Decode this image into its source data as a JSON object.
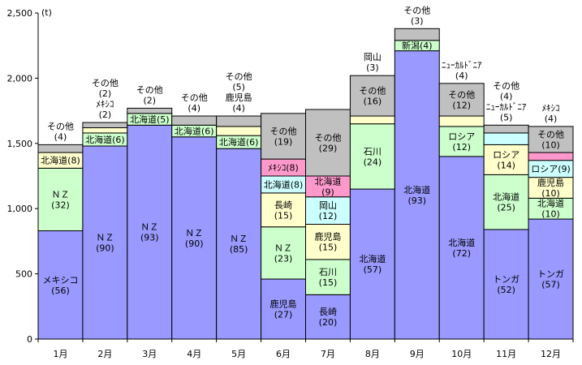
{
  "chart_data": {
    "type": "bar",
    "stacked": true,
    "unit_label": "(t)",
    "ylim": [
      0,
      2500
    ],
    "y_ticks": [
      "0",
      "500",
      "1,000",
      "1,500",
      "2,000",
      "2,500"
    ],
    "y_tick_values": [
      0,
      500,
      1000,
      1500,
      2000,
      2500
    ],
    "grid": false,
    "colors": {
      "purple": "#9999ff",
      "green": "#ccffcc",
      "yellow": "#ffffcc",
      "gray": "#c0c0c0",
      "cyan": "#ccffff",
      "pink": "#ff99cc"
    },
    "months": [
      {
        "label": "1月",
        "segments": [
          {
            "value": 830,
            "color": "purple",
            "lines": [
              "メキシコ",
              "(56)"
            ]
          },
          {
            "value": 480,
            "color": "green",
            "lines": [
              "ＮＺ",
              "(32)"
            ]
          },
          {
            "value": 120,
            "color": "yellow",
            "lines": [
              "北海道(8)"
            ]
          },
          {
            "value": 60,
            "color": "gray",
            "lines": []
          }
        ],
        "top_lines": [
          "その他",
          "(4)"
        ]
      },
      {
        "label": "2月",
        "segments": [
          {
            "value": 1480,
            "color": "purple",
            "lines": [
              "ＮＺ",
              "(90)"
            ]
          },
          {
            "value": 100,
            "color": "green",
            "lines": [
              "北海道(6)"
            ]
          },
          {
            "value": 40,
            "color": "yellow",
            "lines": []
          },
          {
            "value": 40,
            "color": "gray",
            "lines": []
          }
        ],
        "top_lines": [
          "その他",
          "(2)",
          "ﾒｷｼｺ",
          "(2)"
        ]
      },
      {
        "label": "3月",
        "segments": [
          {
            "value": 1640,
            "color": "purple",
            "lines": [
              "ＮＺ",
              "(93)"
            ]
          },
          {
            "value": 90,
            "color": "green",
            "lines": [
              "北海道(5)"
            ]
          },
          {
            "value": 40,
            "color": "gray",
            "lines": []
          }
        ],
        "top_lines": [
          "その他",
          "(2)"
        ]
      },
      {
        "label": "4月",
        "segments": [
          {
            "value": 1550,
            "color": "purple",
            "lines": [
              "ＮＺ",
              "(90)"
            ]
          },
          {
            "value": 90,
            "color": "green",
            "lines": [
              "北海道(6)"
            ]
          },
          {
            "value": 70,
            "color": "gray",
            "lines": []
          }
        ],
        "top_lines": [
          "その他",
          "(4)"
        ]
      },
      {
        "label": "5月",
        "segments": [
          {
            "value": 1460,
            "color": "purple",
            "lines": [
              "ＮＺ",
              "(85)"
            ]
          },
          {
            "value": 100,
            "color": "green",
            "lines": [
              "北海道(6)"
            ]
          },
          {
            "value": 70,
            "color": "yellow",
            "lines": []
          },
          {
            "value": 80,
            "color": "gray",
            "lines": []
          }
        ],
        "top_lines": [
          "その他",
          "(5)",
          "鹿児島",
          "(4)"
        ]
      },
      {
        "label": "6月",
        "segments": [
          {
            "value": 460,
            "color": "purple",
            "lines": [
              "鹿児島",
              "(27)"
            ]
          },
          {
            "value": 400,
            "color": "green",
            "lines": [
              "ＮＺ",
              "(23)"
            ]
          },
          {
            "value": 260,
            "color": "yellow",
            "lines": [
              "長崎",
              "(15)"
            ]
          },
          {
            "value": 130,
            "color": "cyan",
            "lines": [
              "北海道(8)"
            ]
          },
          {
            "value": 130,
            "color": "pink",
            "lines": [
              "ﾒｷｼｺ(8)"
            ]
          },
          {
            "value": 350,
            "color": "gray",
            "lines": [
              "その他",
              "(19)"
            ]
          }
        ],
        "top_lines": []
      },
      {
        "label": "7月",
        "segments": [
          {
            "value": 340,
            "color": "purple",
            "lines": [
              "長崎",
              "(20)"
            ]
          },
          {
            "value": 270,
            "color": "green",
            "lines": [
              "石川",
              "(15)"
            ]
          },
          {
            "value": 270,
            "color": "yellow",
            "lines": [
              "鹿児島",
              "(15)"
            ]
          },
          {
            "value": 210,
            "color": "cyan",
            "lines": [
              "岡山",
              "(12)"
            ]
          },
          {
            "value": 160,
            "color": "pink",
            "lines": [
              "北海道",
              "(9)"
            ]
          },
          {
            "value": 510,
            "color": "gray",
            "lines": [
              "その他",
              "(29)"
            ]
          }
        ],
        "top_lines": []
      },
      {
        "label": "8月",
        "segments": [
          {
            "value": 1150,
            "color": "purple",
            "lines": [
              "北海道",
              "(57)"
            ]
          },
          {
            "value": 500,
            "color": "green",
            "lines": [
              "石川",
              "(24)"
            ]
          },
          {
            "value": 60,
            "color": "yellow",
            "lines": []
          },
          {
            "value": 310,
            "color": "gray",
            "lines": [
              "その他",
              "(16)"
            ]
          }
        ],
        "top_lines": [
          "岡山",
          "(3)"
        ]
      },
      {
        "label": "9月",
        "segments": [
          {
            "value": 2210,
            "color": "purple",
            "lines": [
              "北海道",
              "(93)"
            ]
          },
          {
            "value": 80,
            "color": "green",
            "lines": [
              "新潟(4)"
            ]
          },
          {
            "value": 90,
            "color": "gray",
            "lines": []
          }
        ],
        "top_lines": [
          "その他",
          "(3)"
        ]
      },
      {
        "label": "10月",
        "segments": [
          {
            "value": 1400,
            "color": "purple",
            "lines": [
              "北海道",
              "(72)"
            ]
          },
          {
            "value": 230,
            "color": "green",
            "lines": [
              "ロシア",
              "(12)"
            ]
          },
          {
            "value": 80,
            "color": "yellow",
            "lines": []
          },
          {
            "value": 250,
            "color": "gray",
            "lines": [
              "その他",
              "(12)"
            ]
          }
        ],
        "top_lines": [
          "ﾆｭｰｶﾙﾄﾞﾆｱ",
          "(4)"
        ]
      },
      {
        "label": "11月",
        "segments": [
          {
            "value": 840,
            "color": "purple",
            "lines": [
              "トンガ",
              "(52)"
            ]
          },
          {
            "value": 420,
            "color": "green",
            "lines": [
              "北海道",
              "(25)"
            ]
          },
          {
            "value": 230,
            "color": "yellow",
            "lines": [
              "ロシア",
              "(14)"
            ]
          },
          {
            "value": 90,
            "color": "cyan",
            "lines": []
          },
          {
            "value": 60,
            "color": "gray",
            "lines": []
          }
        ],
        "top_lines": [
          "その他",
          "(4)",
          "ﾆｭｰｶﾙﾄﾞﾆｱ",
          "(5)"
        ]
      },
      {
        "label": "12月",
        "segments": [
          {
            "value": 920,
            "color": "purple",
            "lines": [
              "トンガ",
              "(57)"
            ]
          },
          {
            "value": 160,
            "color": "green",
            "lines": [
              "北海道",
              "(10)"
            ]
          },
          {
            "value": 160,
            "color": "yellow",
            "lines": [
              "鹿児島",
              "(10)"
            ]
          },
          {
            "value": 130,
            "color": "cyan",
            "lines": [
              "ロシア(9)"
            ]
          },
          {
            "value": 60,
            "color": "pink",
            "lines": []
          },
          {
            "value": 200,
            "color": "gray",
            "lines": [
              "その他",
              "(10)"
            ]
          }
        ],
        "top_lines": [
          "ﾒｷｼｺ",
          "(4)"
        ]
      }
    ]
  }
}
